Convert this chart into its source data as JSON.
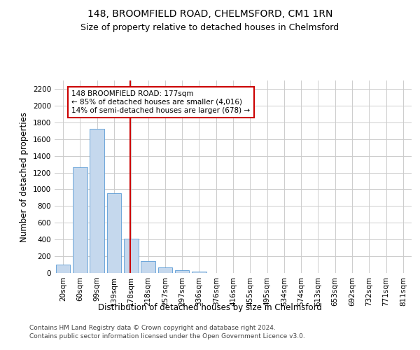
{
  "title": "148, BROOMFIELD ROAD, CHELMSFORD, CM1 1RN",
  "subtitle": "Size of property relative to detached houses in Chelmsford",
  "xlabel": "Distribution of detached houses by size in Chelmsford",
  "ylabel": "Number of detached properties",
  "footer_line1": "Contains HM Land Registry data © Crown copyright and database right 2024.",
  "footer_line2": "Contains public sector information licensed under the Open Government Licence v3.0.",
  "categories": [
    "20sqm",
    "60sqm",
    "99sqm",
    "139sqm",
    "178sqm",
    "218sqm",
    "257sqm",
    "297sqm",
    "336sqm",
    "376sqm",
    "416sqm",
    "455sqm",
    "495sqm",
    "534sqm",
    "574sqm",
    "613sqm",
    "653sqm",
    "692sqm",
    "732sqm",
    "771sqm",
    "811sqm"
  ],
  "values": [
    100,
    1260,
    1720,
    950,
    410,
    145,
    65,
    35,
    20,
    0,
    0,
    0,
    0,
    0,
    0,
    0,
    0,
    0,
    0,
    0,
    0
  ],
  "bar_color": "#c5d8ed",
  "bar_edge_color": "#5b9bd5",
  "highlight_index": 4,
  "red_line_color": "#cc0000",
  "annotation_line1": "148 BROOMFIELD ROAD: 177sqm",
  "annotation_line2": "← 85% of detached houses are smaller (4,016)",
  "annotation_line3": "14% of semi-detached houses are larger (678) →",
  "annotation_box_color": "#cc0000",
  "ylim": [
    0,
    2300
  ],
  "yticks": [
    0,
    200,
    400,
    600,
    800,
    1000,
    1200,
    1400,
    1600,
    1800,
    2000,
    2200
  ],
  "grid_color": "#cccccc",
  "background_color": "#ffffff",
  "title_fontsize": 10,
  "subtitle_fontsize": 9,
  "axis_label_fontsize": 8.5,
  "tick_fontsize": 7.5,
  "footer_fontsize": 6.5,
  "annotation_fontsize": 7.5
}
